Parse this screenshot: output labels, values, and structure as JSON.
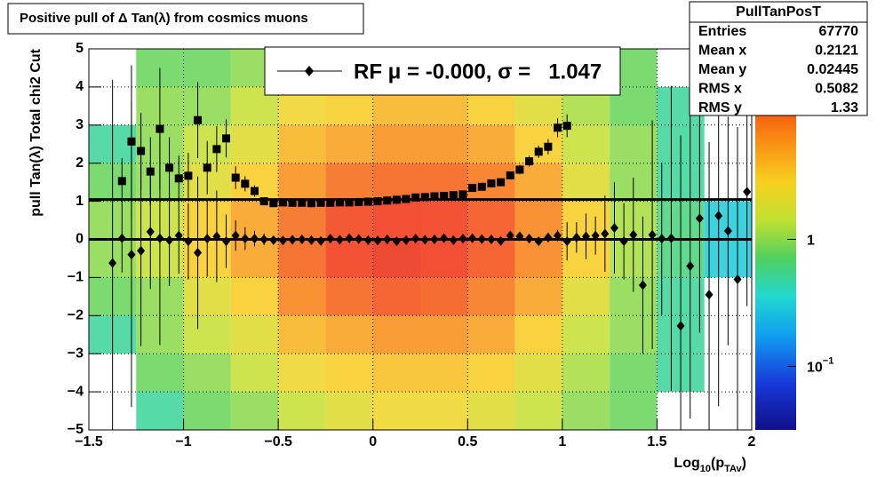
{
  "chart_data": {
    "type": "heatmap",
    "title": "Positive pull of Δ Tan(λ) from cosmics muons",
    "x_label_parts": [
      "Log",
      "10",
      "(p",
      "TAv",
      ")"
    ],
    "y_label": "pull Tan(λ)  Total chi2 Cut",
    "xlim": [
      -1.5,
      2
    ],
    "ylim": [
      -5,
      5
    ],
    "xticks": [
      {
        "value": -1.5,
        "label": "−1.5"
      },
      {
        "value": -1,
        "label": "−1"
      },
      {
        "value": -0.5,
        "label": "−0.5"
      },
      0,
      0.5,
      1,
      1.5,
      2
    ],
    "yticks": [
      {
        "value": -5,
        "label": "−5"
      },
      {
        "value": -4,
        "label": "−4"
      },
      {
        "value": -3,
        "label": "−3"
      },
      {
        "value": -2,
        "label": "−2"
      },
      {
        "value": -1,
        "label": "−1"
      },
      0,
      1,
      2,
      3,
      4,
      5
    ],
    "grid": true,
    "zlog": true,
    "zlim": [
      0.0316,
      31.6
    ],
    "zticks": [
      {
        "value": 1,
        "label": "1"
      },
      {
        "value": 0.1,
        "label": "10",
        "exponent": "−1"
      }
    ],
    "x_bins": [
      -1.5,
      -1.25,
      -1,
      -0.75,
      -0.5,
      -0.25,
      0,
      0.25,
      0.5,
      0.75,
      1,
      1.25,
      1.5,
      1.75,
      2
    ],
    "y_bins": [
      5,
      4,
      3,
      2,
      1,
      0,
      -1,
      -2,
      -3,
      -4,
      -5
    ],
    "z": [
      [
        0,
        0.8,
        0.8,
        1,
        1.5,
        2,
        2.5,
        2.5,
        2,
        1.5,
        1,
        0.8,
        0,
        0
      ],
      [
        0,
        1,
        1,
        1.5,
        2.5,
        3,
        4,
        4,
        3,
        2,
        1.2,
        0.8,
        0.5,
        0
      ],
      [
        0.5,
        1,
        1.5,
        2,
        4,
        5,
        6,
        6,
        5,
        3,
        1.5,
        1,
        0.5,
        0
      ],
      [
        0.8,
        1,
        2,
        3,
        6,
        9,
        10,
        10,
        8,
        5,
        2,
        1,
        0.5,
        0
      ],
      [
        1,
        1.5,
        3,
        5,
        9,
        14,
        16,
        15,
        12,
        7,
        3,
        1.2,
        0.6,
        0.3
      ],
      [
        1,
        1.5,
        3,
        5,
        10,
        15,
        18,
        16,
        12,
        7,
        3,
        1.2,
        0.6,
        0.3
      ],
      [
        0.8,
        1,
        2,
        3,
        7,
        10,
        12,
        11,
        8,
        5,
        2,
        1,
        0.5,
        0
      ],
      [
        0.5,
        1,
        1.5,
        2,
        4,
        5,
        6,
        6,
        5,
        3,
        1.5,
        1,
        0.5,
        0
      ],
      [
        0,
        0.8,
        1,
        1.5,
        2.5,
        3,
        3.5,
        3.5,
        3,
        2,
        1.2,
        0.8,
        0.5,
        0
      ],
      [
        0,
        0.5,
        0.8,
        1,
        1.5,
        2,
        2.5,
        2.5,
        2,
        1.5,
        1,
        0.8,
        0,
        0
      ]
    ],
    "series": [
      {
        "marker": "square",
        "color": "#000000",
        "x": [
          -1.325,
          -1.275,
          -1.225,
          -1.175,
          -1.125,
          -1.075,
          -1.025,
          -0.975,
          -0.925,
          -0.875,
          -0.825,
          -0.775,
          -0.725,
          -0.675,
          -0.625,
          -0.575,
          -0.525,
          -0.475,
          -0.425,
          -0.375,
          -0.325,
          -0.275,
          -0.225,
          -0.175,
          -0.125,
          -0.075,
          -0.025,
          0.025,
          0.075,
          0.125,
          0.175,
          0.225,
          0.275,
          0.325,
          0.375,
          0.425,
          0.475,
          0.525,
          0.575,
          0.625,
          0.675,
          0.725,
          0.775,
          0.825,
          0.875,
          0.925,
          0.975,
          1.025
        ],
        "values": [
          1.53,
          2.57,
          2.32,
          1.78,
          2.9,
          1.88,
          1.6,
          1.67,
          3.13,
          1.88,
          2.37,
          2.65,
          1.62,
          1.46,
          1.27,
          1.0,
          0.95,
          0.97,
          0.96,
          0.96,
          0.95,
          0.96,
          0.96,
          0.97,
          0.97,
          0.98,
          0.99,
          1.0,
          1.02,
          1.04,
          1.06,
          1.1,
          1.11,
          1.13,
          1.14,
          1.16,
          1.18,
          1.35,
          1.38,
          1.47,
          1.5,
          1.68,
          1.83,
          2.05,
          2.3,
          2.43,
          2.93,
          2.98
        ],
        "errors": [
          0.6,
          2.0,
          1.0,
          0.9,
          1.6,
          0.8,
          0.6,
          0.6,
          1.0,
          0.7,
          0.6,
          0.5,
          0.3,
          0.2,
          0.15,
          0.05,
          0.05,
          0.05,
          0.05,
          0.05,
          0.05,
          0.05,
          0.05,
          0.05,
          0.05,
          0.05,
          0.05,
          0.05,
          0.05,
          0.05,
          0.05,
          0.05,
          0.05,
          0.05,
          0.05,
          0.05,
          0.05,
          0.05,
          0.06,
          0.07,
          0.08,
          0.1,
          0.12,
          0.14,
          0.16,
          0.2,
          0.25,
          0.3
        ]
      },
      {
        "marker": "diamond",
        "color": "#000000",
        "x": [
          -1.375,
          -1.325,
          -1.275,
          -1.225,
          -1.175,
          -1.125,
          -1.075,
          -1.025,
          -0.975,
          -0.925,
          -0.875,
          -0.825,
          -0.775,
          -0.725,
          -0.675,
          -0.625,
          -0.575,
          -0.525,
          -0.475,
          -0.425,
          -0.375,
          -0.325,
          -0.275,
          -0.225,
          -0.175,
          -0.125,
          -0.075,
          -0.025,
          0.025,
          0.075,
          0.125,
          0.175,
          0.225,
          0.275,
          0.325,
          0.375,
          0.425,
          0.475,
          0.525,
          0.575,
          0.625,
          0.675,
          0.725,
          0.775,
          0.825,
          0.875,
          0.925,
          0.975,
          1.025,
          1.075,
          1.125,
          1.175,
          1.225,
          1.275,
          1.325,
          1.375,
          1.425,
          1.475,
          1.525,
          1.575,
          1.625,
          1.675,
          1.725,
          1.775,
          1.825,
          1.875,
          1.925,
          1.975
        ],
        "values": [
          -0.62,
          0.03,
          -0.4,
          -0.3,
          0.2,
          0.03,
          -0.02,
          0.1,
          -0.05,
          -0.35,
          0.02,
          0.08,
          -0.05,
          0.1,
          0.02,
          0.02,
          0.0,
          -0.02,
          -0.03,
          -0.01,
          0.0,
          -0.02,
          -0.04,
          0.02,
          -0.01,
          0.03,
          0.01,
          -0.02,
          -0.03,
          0.0,
          -0.05,
          -0.02,
          0.02,
          -0.01,
          0.0,
          0.03,
          -0.02,
          0.02,
          0.03,
          0.01,
          0.0,
          -0.04,
          0.1,
          0.08,
          0.02,
          -0.05,
          0.05,
          0.1,
          -0.05,
          0.05,
          0.08,
          0.1,
          0.15,
          0.3,
          -0.05,
          0.12,
          -1.2,
          0.12,
          0.02,
          0.03,
          -2.27,
          -0.7,
          0.55,
          -1.45,
          0.62,
          0.22,
          -1.05,
          1.25
        ],
        "errors": [
          4.8,
          0.9,
          4.0,
          2.5,
          1.5,
          2.8,
          1.2,
          1.0,
          1.0,
          2.0,
          1.0,
          1.2,
          0.7,
          0.4,
          0.3,
          0.2,
          0.15,
          0.1,
          0.05,
          0.05,
          0.05,
          0.05,
          0.05,
          0.05,
          0.05,
          0.05,
          0.05,
          0.05,
          0.05,
          0.05,
          0.05,
          0.05,
          0.05,
          0.05,
          0.05,
          0.05,
          0.05,
          0.05,
          0.05,
          0.05,
          0.05,
          0.05,
          0.06,
          0.07,
          0.08,
          0.1,
          0.12,
          0.15,
          0.5,
          0.4,
          0.6,
          0.5,
          1.0,
          1.2,
          1.0,
          1.5,
          1.8,
          3.0,
          2.0,
          4.0,
          5.0,
          4.0,
          3.0,
          4.0,
          5.0,
          3.0,
          4.0,
          3.0
        ]
      }
    ],
    "fit_lines": [
      1.047,
      0
    ],
    "legend": "RF μ = -0.000, σ =   1.047",
    "stats": {
      "title": "PullTanPosT",
      "rows": [
        {
          "name": "Entries",
          "value": 67770
        },
        {
          "name": "Mean x",
          "value": 0.2121
        },
        {
          "name": "Mean y",
          "value": 0.02445
        },
        {
          "name": "RMS x",
          "value": 0.5082
        },
        {
          "name": "RMS y",
          "value": 1.33
        }
      ]
    }
  }
}
